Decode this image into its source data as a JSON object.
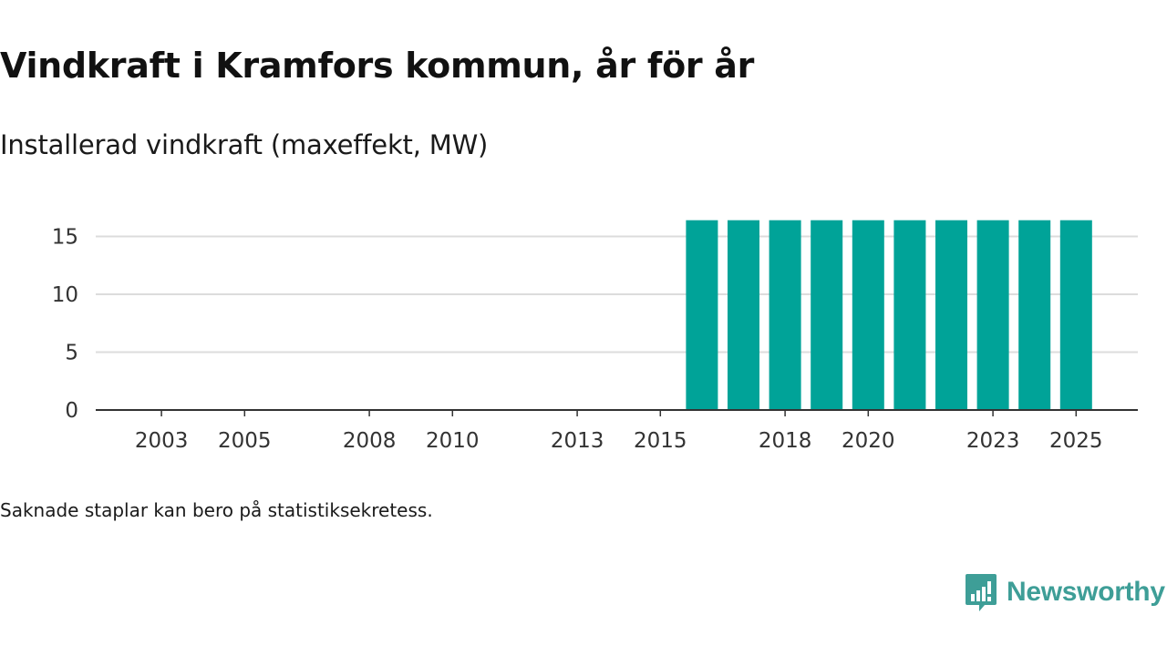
{
  "title": "Vindkraft i Kramfors kommun, år för år",
  "subtitle": "Installerad vindkraft (maxeffekt, MW)",
  "note": "Saknade staplar kan bero på statistiksekretess.",
  "logo": {
    "text": "Newsworthy",
    "icon": "newsworthy-logo-icon"
  },
  "colors": {
    "bar": "#00a398",
    "grid": "#dcdcdc",
    "axis": "#333333",
    "brand": "#3e9e97"
  },
  "chart_data": {
    "type": "bar",
    "categories": [
      "2002",
      "2003",
      "2004",
      "2005",
      "2006",
      "2007",
      "2008",
      "2009",
      "2010",
      "2011",
      "2012",
      "2013",
      "2014",
      "2015",
      "2016",
      "2017",
      "2018",
      "2019",
      "2020",
      "2021",
      "2022",
      "2023",
      "2024",
      "2025"
    ],
    "values": [
      0,
      0,
      0,
      0,
      0,
      0,
      0,
      0,
      0,
      0,
      0,
      0,
      0,
      0,
      16.4,
      16.4,
      16.4,
      16.4,
      16.4,
      16.4,
      16.4,
      16.4,
      16.4,
      16.4
    ],
    "xticks": [
      "2003",
      "2005",
      "2008",
      "2010",
      "2013",
      "2015",
      "2018",
      "2020",
      "2023",
      "2025"
    ],
    "yticks": [
      0,
      5,
      10,
      15
    ],
    "ylim": [
      0,
      17
    ],
    "grid": true
  }
}
